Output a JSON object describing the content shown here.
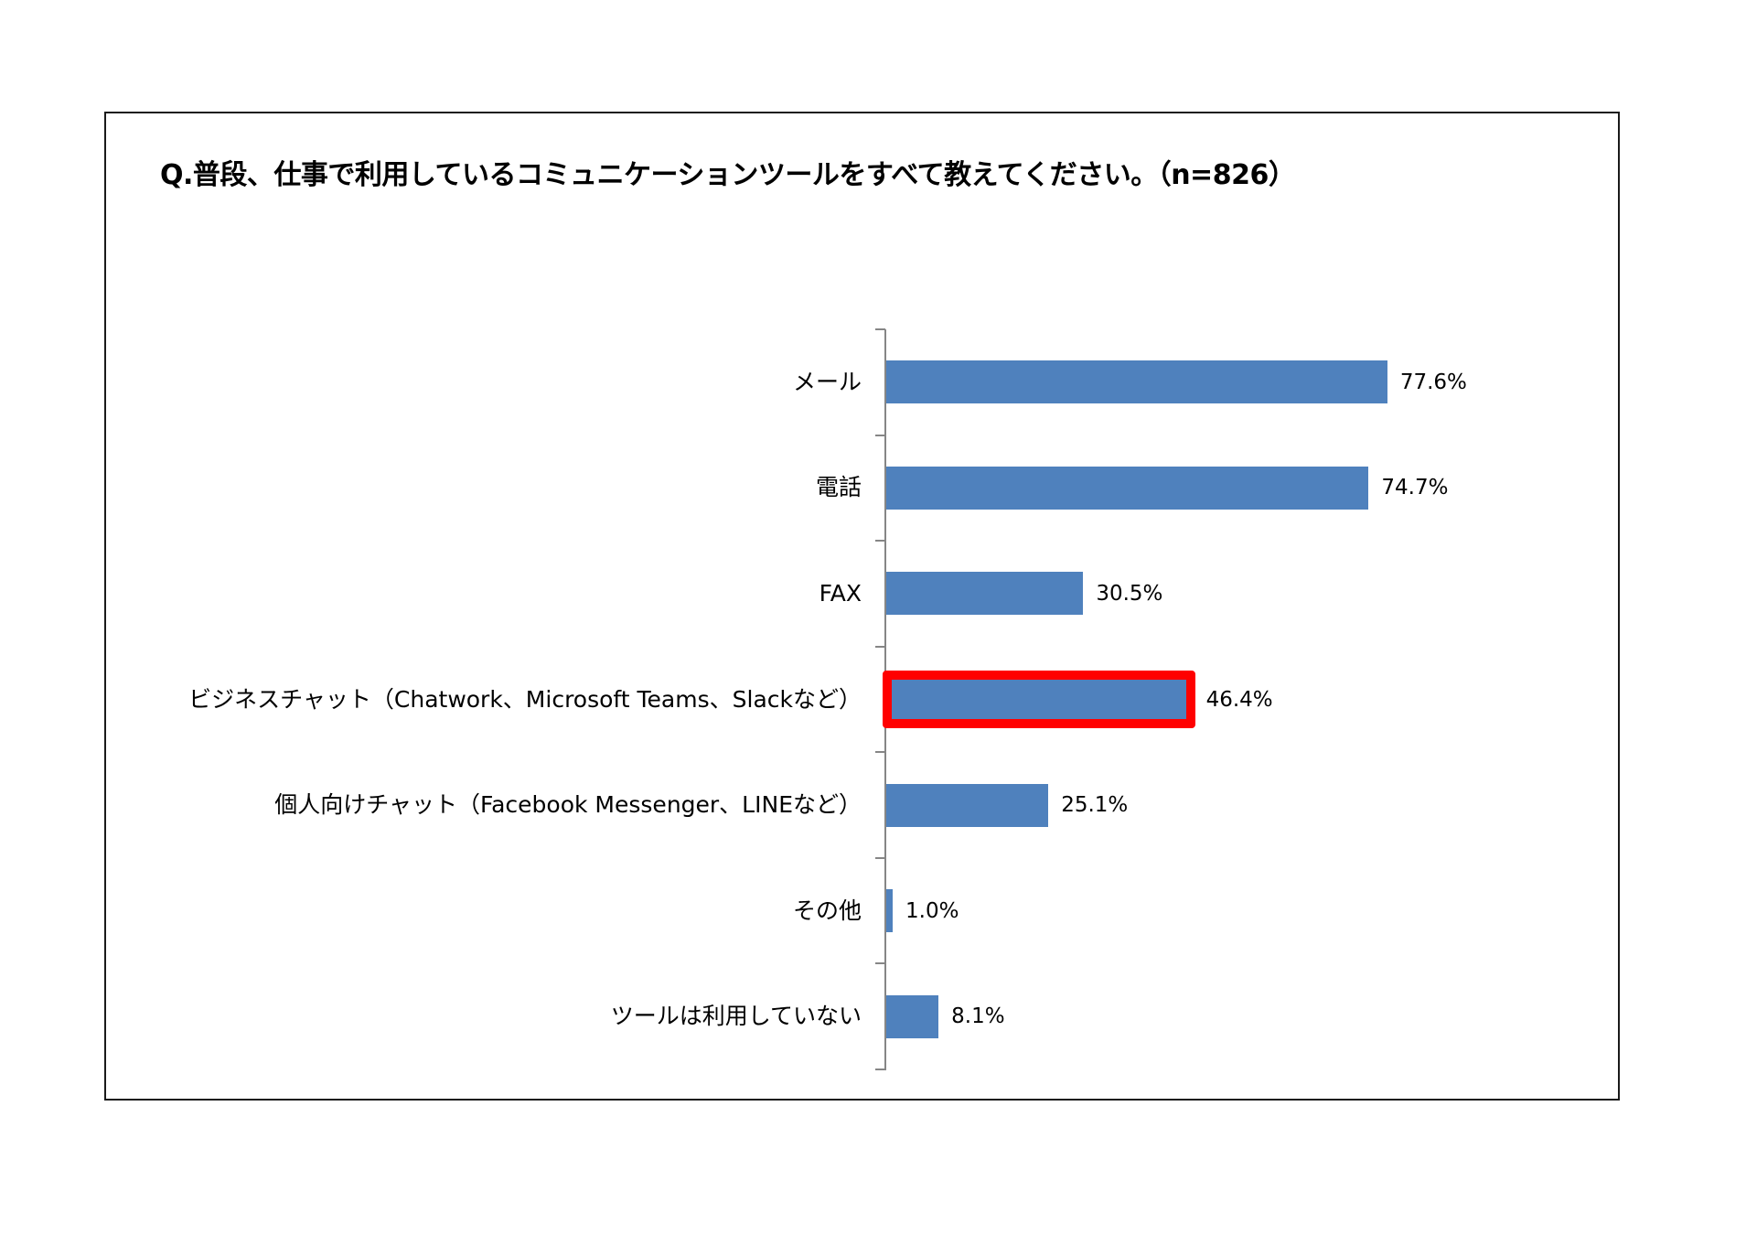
{
  "chart_data": {
    "type": "bar",
    "orientation": "horizontal",
    "title": "Q.普段、仕事で利用しているコミュニケーションツールをすべて教えてください。（n=826）",
    "xlabel": "",
    "ylabel": "",
    "unit": "%",
    "grid": false,
    "legend": null,
    "categories": [
      "メール",
      "電話",
      "FAX",
      "ビジネスチャット（Chatwork、Microsoft Teams、Slackなど）",
      "個人向けチャット（Facebook Messenger、LINEなど）",
      "その他",
      "ツールは利用していない"
    ],
    "values": [
      77.6,
      74.7,
      30.5,
      46.4,
      25.1,
      1.0,
      8.1
    ],
    "value_labels": [
      "77.6%",
      "74.7%",
      "30.5%",
      "46.4%",
      "25.1%",
      "1.0%",
      "8.1%"
    ],
    "bar_color": "#4F81BD",
    "highlighted_category": "ビジネスチャット（Chatwork、Microsoft Teams、Slackなど）",
    "highlight_color": "#FF0000",
    "sample_size": "n=826"
  }
}
